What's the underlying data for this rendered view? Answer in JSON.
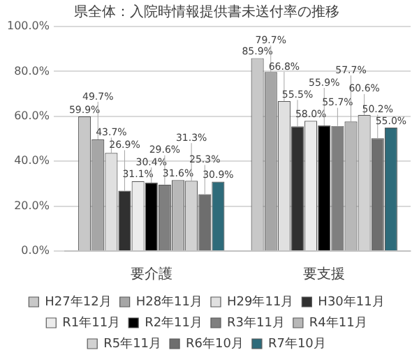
{
  "chart_data": {
    "type": "bar",
    "title": "県全体：入院時情報提供書未送付率の推移",
    "categories": [
      "要介護",
      "要支援"
    ],
    "series": [
      {
        "name": "H27年12月",
        "color": "#c8c8c8",
        "values": [
          59.9,
          85.9
        ],
        "value_labels": [
          "59.9%",
          "85.9%"
        ]
      },
      {
        "name": "H28年11月",
        "color": "#a6a6a6",
        "values": [
          49.7,
          79.7
        ],
        "value_labels": [
          "49.7%",
          "79.7%"
        ]
      },
      {
        "name": "H29年11月",
        "color": "#e0e0e0",
        "values": [
          43.7,
          66.8
        ],
        "value_labels": [
          "43.7%",
          "66.8%"
        ]
      },
      {
        "name": "H30年11月",
        "color": "#303030",
        "values": [
          26.9,
          55.5
        ],
        "value_labels": [
          "26.9%",
          "55.5%"
        ]
      },
      {
        "name": "R1年11月",
        "color": "#ececec",
        "values": [
          31.1,
          58.0
        ],
        "value_labels": [
          "31.1%",
          "58.0%"
        ]
      },
      {
        "name": "R2年11月",
        "color": "#000000",
        "values": [
          30.4,
          55.9
        ],
        "value_labels": [
          "30.4%",
          "55.9%"
        ]
      },
      {
        "name": "R3年11月",
        "color": "#7f7f7f",
        "values": [
          29.6,
          55.7
        ],
        "value_labels": [
          "29.6%",
          "55.7%"
        ]
      },
      {
        "name": "R4年11月",
        "color": "#b8b8b8",
        "values": [
          31.6,
          57.7
        ],
        "value_labels": [
          "31.6%",
          "57.7%"
        ]
      },
      {
        "name": "R5年11月",
        "color": "#d2d2d2",
        "values": [
          31.3,
          60.6
        ],
        "value_labels": [
          "31.3%",
          "60.6%"
        ]
      },
      {
        "name": "R6年10月",
        "color": "#6e6e6e",
        "values": [
          25.3,
          50.2
        ],
        "value_labels": [
          "25.3%",
          "50.2%"
        ]
      },
      {
        "name": "R7年10月",
        "color": "#2e6b7a",
        "values": [
          30.9,
          55.0
        ],
        "value_labels": [
          "30.9%",
          "55.0%"
        ]
      }
    ],
    "ylim": [
      0,
      100
    ],
    "yticks": [
      {
        "value": 0,
        "label": "0.0%"
      },
      {
        "value": 20,
        "label": "20.0%"
      },
      {
        "value": 40,
        "label": "40.0%"
      },
      {
        "value": 60,
        "label": "60.0%"
      },
      {
        "value": 80,
        "label": "80.0%"
      },
      {
        "value": 100,
        "label": "100.0%"
      }
    ],
    "grid": "y",
    "legend": "bottom"
  }
}
